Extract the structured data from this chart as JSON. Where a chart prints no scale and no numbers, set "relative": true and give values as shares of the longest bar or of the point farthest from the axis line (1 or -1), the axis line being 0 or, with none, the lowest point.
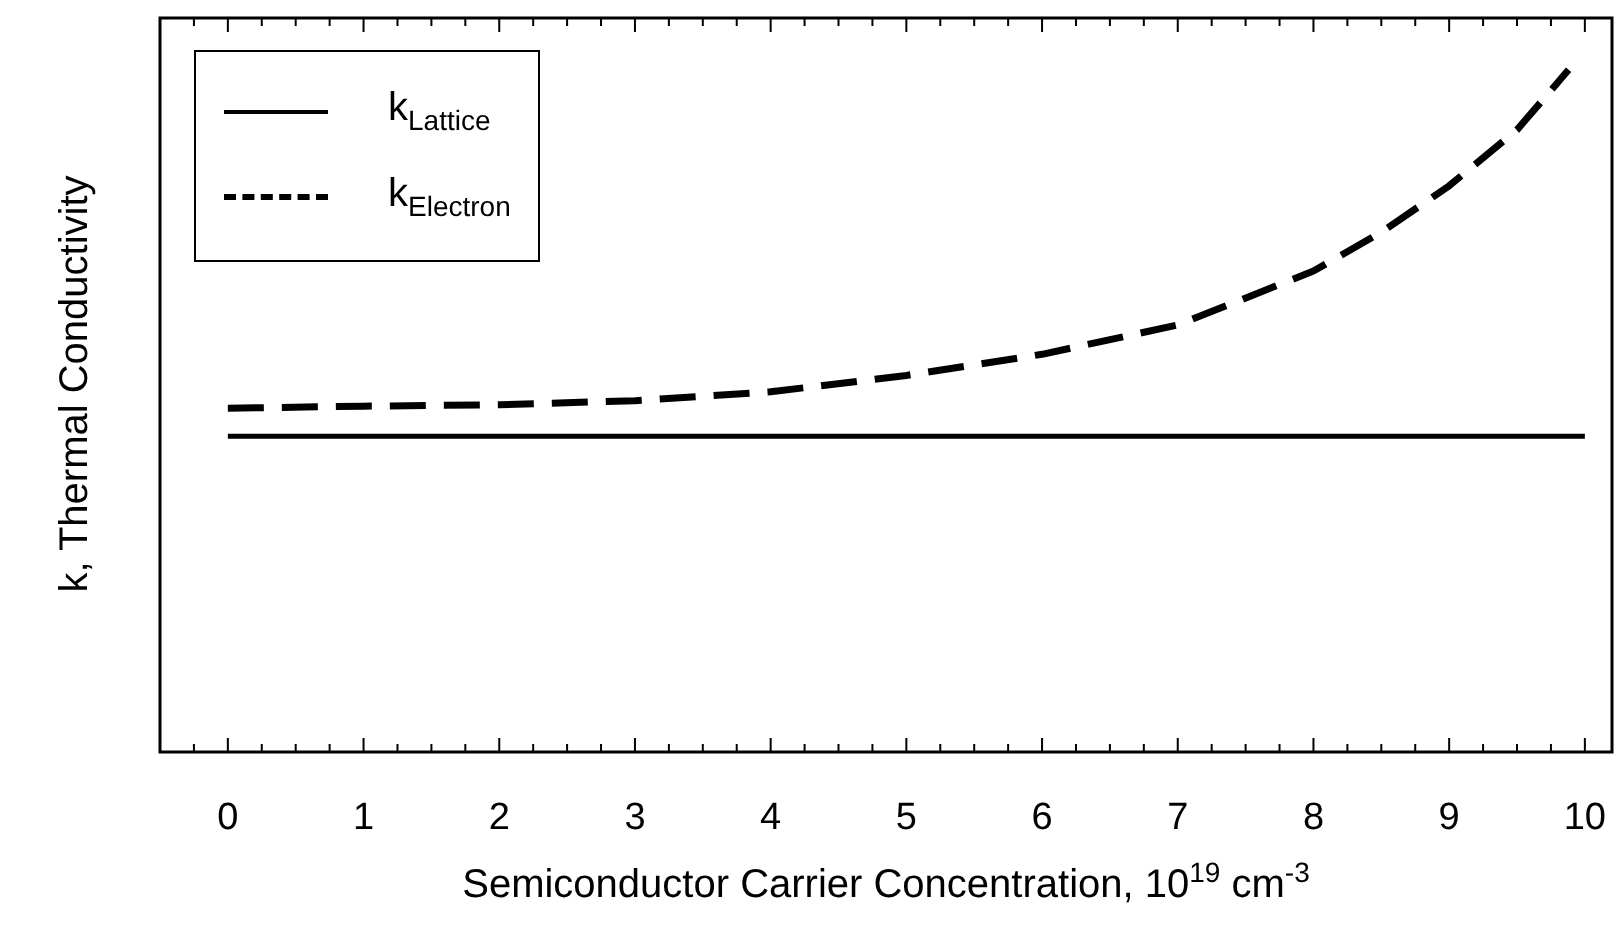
{
  "chart_data": {
    "type": "line",
    "xlabel": "Semiconductor Carrier Concentration, 10$^{19}$ cm$^{-3}$",
    "ylabel": "k, Thermal Conductivity",
    "relative": true,
    "legend": "top left",
    "marker": "none",
    "grid": false,
    "xlim": [
      -0.5,
      10.2
    ],
    "xticks": [
      0,
      1,
      2,
      3,
      4,
      5,
      6,
      7,
      8,
      9,
      10,
      {
        "value": -0.25,
        "label": null
      },
      {
        "value": 0.25,
        "label": null
      },
      {
        "value": 0.5,
        "label": null
      },
      {
        "value": 0.75,
        "label": null
      },
      {
        "value": 1.25,
        "label": null
      },
      {
        "value": 1.5,
        "label": null
      },
      {
        "value": 1.75,
        "label": null
      },
      {
        "value": 2.25,
        "label": null
      },
      {
        "value": 2.5,
        "label": null
      },
      {
        "value": 2.75,
        "label": null
      },
      {
        "value": 3.25,
        "label": null
      },
      {
        "value": 3.5,
        "label": null
      },
      {
        "value": 3.75,
        "label": null
      },
      {
        "value": 4.25,
        "label": null
      },
      {
        "value": 4.5,
        "label": null
      },
      {
        "value": 4.75,
        "label": null
      },
      {
        "value": 5.25,
        "label": null
      },
      {
        "value": 5.5,
        "label": null
      },
      {
        "value": 5.75,
        "label": null
      },
      {
        "value": 6.25,
        "label": null
      },
      {
        "value": 6.5,
        "label": null
      },
      {
        "value": 6.75,
        "label": null
      },
      {
        "value": 7.25,
        "label": null
      },
      {
        "value": 7.5,
        "label": null
      },
      {
        "value": 7.75,
        "label": null
      },
      {
        "value": 8.25,
        "label": null
      },
      {
        "value": 8.5,
        "label": null
      },
      {
        "value": 8.75,
        "label": null
      },
      {
        "value": 9.25,
        "label": null
      },
      {
        "value": 9.5,
        "label": null
      },
      {
        "value": 9.75,
        "label": null
      }
    ],
    "series": [
      {
        "name": "k$_{Lattice}$",
        "color": "#000000",
        "line_style": "solid",
        "x": [
          0,
          10
        ],
        "values": [
          0.463,
          0.463
        ]
      },
      {
        "name": "k$_{Electron}$",
        "color": "#000000",
        "line_style": "dashed",
        "x": [
          0,
          1,
          2,
          3,
          4,
          5,
          6,
          7,
          8,
          8.5,
          9,
          9.5,
          9.88
        ],
        "values": [
          0.504,
          0.507,
          0.509,
          0.515,
          0.528,
          0.552,
          0.583,
          0.626,
          0.705,
          0.762,
          0.83,
          0.912,
          1.0
        ]
      }
    ]
  }
}
